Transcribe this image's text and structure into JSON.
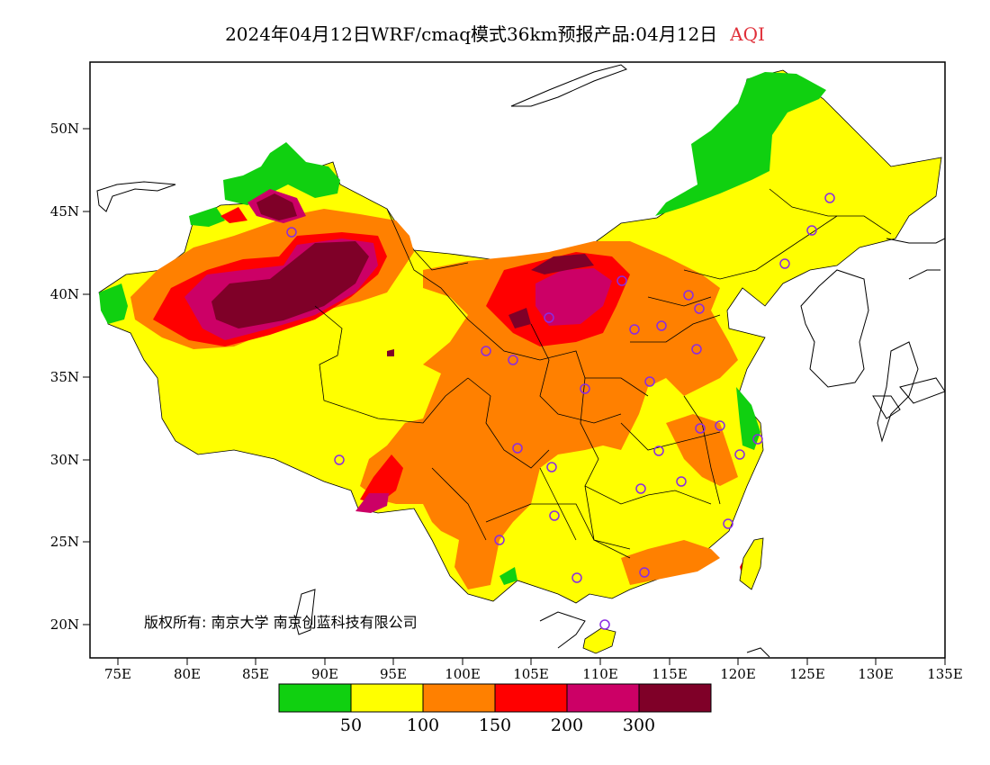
{
  "title": {
    "main": "2024年04月12日WRF/cmaq模式36km预报产品:04月12日",
    "variable": "AQI"
  },
  "colors": {
    "band_1": "#10d010",
    "band_2": "#ffff00",
    "band_3": "#ff8000",
    "band_4": "#ff0000",
    "band_5": "#cc0066",
    "band_6": "#7f0028",
    "station": "#8a2be2",
    "variable_label": "#e0303a"
  },
  "axes": {
    "lat_ticks": [
      "20N",
      "25N",
      "30N",
      "35N",
      "40N",
      "45N",
      "50N"
    ],
    "lon_ticks": [
      "75E",
      "80E",
      "85E",
      "90E",
      "95E",
      "100E",
      "105E",
      "110E",
      "115E",
      "120E",
      "125E",
      "130E",
      "135E"
    ]
  },
  "copyright": "版权所有: 南京大学  南京创蓝科技有限公司",
  "legend": {
    "labels": [
      "50",
      "100",
      "150",
      "200",
      "300"
    ]
  }
}
